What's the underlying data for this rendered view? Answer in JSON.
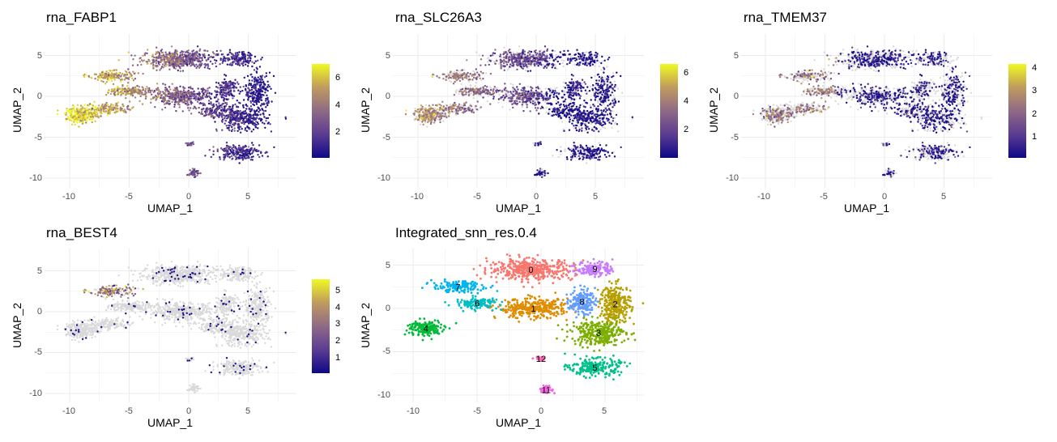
{
  "colors": {
    "grid": "#ebebeb",
    "background_points": "#d9d9d9",
    "colorscale": [
      "#0d0887",
      "#5c3c92",
      "#8f6a86",
      "#c09a5e",
      "#f0f921"
    ]
  },
  "chart_data": [
    {
      "type": "scatter",
      "title": "rna_FABP1",
      "xlabel": "UMAP_1",
      "ylabel": "UMAP_2",
      "xlim": [
        -12,
        9
      ],
      "ylim": [
        -11,
        6.5
      ],
      "x_ticks": [
        "-10",
        "-5",
        "0",
        "5"
      ],
      "y_ticks": [
        "5",
        "0",
        "-5",
        "-10"
      ],
      "grid": true,
      "legend_position": "right",
      "colorbar": {
        "min": 0.3,
        "max": 7,
        "ticks": [
          "6",
          "4",
          "2"
        ],
        "tick_values": [
          6,
          4,
          2
        ]
      },
      "expression_level": "high"
    },
    {
      "type": "scatter",
      "title": "rna_SLC26A3",
      "xlabel": "UMAP_1",
      "ylabel": "UMAP_2",
      "xlim": [
        -12,
        9
      ],
      "ylim": [
        -11,
        6.5
      ],
      "x_ticks": [
        "-10",
        "-5",
        "0",
        "5"
      ],
      "y_ticks": [
        "5",
        "0",
        "-5",
        "-10"
      ],
      "grid": true,
      "legend_position": "right",
      "colorbar": {
        "min": 0.3,
        "max": 6.8,
        "ticks": [
          "6",
          "4",
          "2"
        ],
        "tick_values": [
          6,
          4,
          2
        ]
      },
      "expression_level": "medium"
    },
    {
      "type": "scatter",
      "title": "rna_TMEM37",
      "xlabel": "UMAP_1",
      "ylabel": "UMAP_2",
      "xlim": [
        -12,
        9
      ],
      "ylim": [
        -11,
        6.5
      ],
      "x_ticks": [
        "-10",
        "-5",
        "0",
        "5"
      ],
      "y_ticks": [
        "5",
        "0",
        "-5",
        "-10"
      ],
      "grid": true,
      "legend_position": "right",
      "colorbar": {
        "min": 0.2,
        "max": 4.1,
        "ticks": [
          "4",
          "3",
          "2",
          "1"
        ],
        "tick_values": [
          4,
          3,
          2,
          1
        ]
      },
      "expression_level": "low"
    },
    {
      "type": "scatter",
      "title": "rna_BEST4",
      "xlabel": "UMAP_1",
      "ylabel": "UMAP_2",
      "xlim": [
        -12,
        9
      ],
      "ylim": [
        -11,
        6.5
      ],
      "x_ticks": [
        "-10",
        "-5",
        "0",
        "5"
      ],
      "y_ticks": [
        "5",
        "0",
        "-5",
        "-10"
      ],
      "grid": true,
      "legend_position": "right",
      "colorbar": {
        "min": 0.2,
        "max": 5.6,
        "ticks": [
          "5",
          "4",
          "3",
          "2",
          "1"
        ],
        "tick_values": [
          5,
          4,
          3,
          2,
          1
        ]
      },
      "expression_level": "sparse"
    },
    {
      "type": "scatter",
      "title": "Integrated_snn_res.0.4",
      "xlabel": "UMAP_1",
      "ylabel": "UMAP_2",
      "xlim": [
        -12,
        9
      ],
      "ylim": [
        -11,
        6.5
      ],
      "x_ticks": [
        "-10",
        "-5",
        "0",
        "5"
      ],
      "y_ticks": [
        "5",
        "0",
        "-5",
        "-10"
      ],
      "grid": true,
      "clusters": [
        {
          "label": "0",
          "x": -0.8,
          "y": 4.5,
          "sx": 3.0,
          "sy": 1.1,
          "color": "#f8766d"
        },
        {
          "label": "1",
          "x": -0.6,
          "y": 0.0,
          "sx": 2.6,
          "sy": 1.0,
          "color": "#de8c00"
        },
        {
          "label": "2",
          "x": 5.8,
          "y": 0.5,
          "sx": 1.1,
          "sy": 2.0,
          "color": "#b79f00"
        },
        {
          "label": "3",
          "x": 4.5,
          "y": -2.8,
          "sx": 1.9,
          "sy": 1.3,
          "color": "#7cae00"
        },
        {
          "label": "4",
          "x": -9.0,
          "y": -2.3,
          "sx": 1.3,
          "sy": 0.9,
          "color": "#00ba38"
        },
        {
          "label": "5",
          "x": 4.2,
          "y": -6.8,
          "sx": 1.8,
          "sy": 0.9,
          "color": "#00c08b"
        },
        {
          "label": "6",
          "x": -5.0,
          "y": 0.6,
          "sx": 1.5,
          "sy": 0.6,
          "color": "#00bfc4"
        },
        {
          "label": "7",
          "x": -6.5,
          "y": 2.5,
          "sx": 1.8,
          "sy": 0.6,
          "color": "#00b4f0"
        },
        {
          "label": "8",
          "x": 3.2,
          "y": 0.8,
          "sx": 0.9,
          "sy": 1.3,
          "color": "#619cff"
        },
        {
          "label": "9",
          "x": 4.2,
          "y": 4.6,
          "sx": 1.3,
          "sy": 0.8,
          "color": "#c77cff"
        },
        {
          "label": "11",
          "x": 0.4,
          "y": -9.4,
          "sx": 0.5,
          "sy": 0.4,
          "color": "#f564e3"
        },
        {
          "label": "12",
          "x": 0.0,
          "y": -5.8,
          "sx": 0.4,
          "sy": 0.2,
          "color": "#ff64b0"
        }
      ]
    }
  ]
}
